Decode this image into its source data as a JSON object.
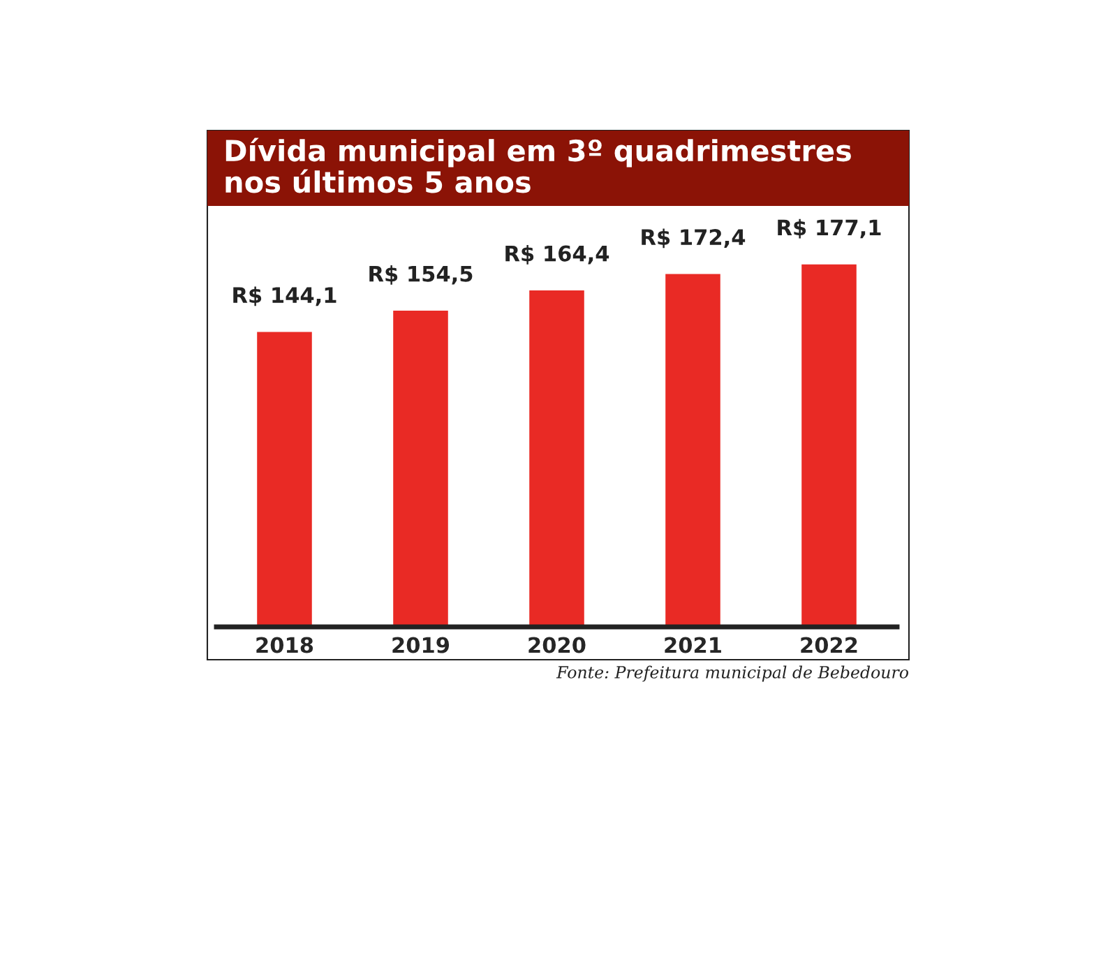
{
  "chart_data": {
    "type": "bar",
    "title": "Dívida municipal em 3º quadrimestres\nnos últimos 5 anos",
    "categories": [
      "2018",
      "2019",
      "2020",
      "2021",
      "2022"
    ],
    "values": [
      144.1,
      154.5,
      164.4,
      172.4,
      177.1
    ],
    "value_labels": [
      "R$ 144,1",
      "R$ 154,5",
      "R$ 164,4",
      "R$ 172,4",
      "R$ 177,1"
    ],
    "color": "#e92a25",
    "tick_labels": "x",
    "grid": false,
    "legend": false,
    "annotations": [
      "Fonte: Prefeitura municipal de Bebedouro"
    ]
  }
}
